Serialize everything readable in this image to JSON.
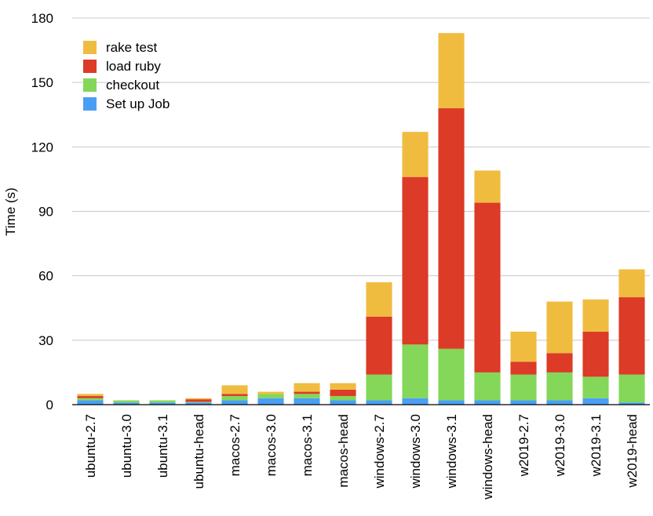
{
  "chart_data": {
    "type": "bar",
    "stacked": true,
    "title": "",
    "xlabel": "",
    "ylabel": "Time (s)",
    "ylim": [
      0,
      180
    ],
    "yticks": [
      0,
      30,
      60,
      90,
      120,
      150,
      180
    ],
    "grid": true,
    "legend_position": "top-left",
    "categories": [
      "ubuntu-2.7",
      "ubuntu-3.0",
      "ubuntu-3.1",
      "ubuntu-head",
      "macos-2.7",
      "macos-3.0",
      "macos-3.1",
      "macos-head",
      "windows-2.7",
      "windows-3.0",
      "windows-3.1",
      "windows-head",
      "w2019-2.7",
      "w2019-3.0",
      "w2019-3.1",
      "w2019-head"
    ],
    "series": [
      {
        "name": "Set up Job",
        "color": "#4a9ff5",
        "values": [
          2,
          1,
          1,
          1,
          2,
          3,
          3,
          2,
          2,
          3,
          2,
          2,
          2,
          2,
          3,
          1
        ]
      },
      {
        "name": "checkout",
        "color": "#84d758",
        "values": [
          1,
          1,
          1,
          0.3,
          2,
          2,
          2,
          2,
          12,
          25,
          24,
          13,
          12,
          13,
          10,
          13
        ]
      },
      {
        "name": "load ruby",
        "color": "#dc3b27",
        "values": [
          1,
          0,
          0,
          1.2,
          1,
          0,
          1,
          3,
          27,
          78,
          112,
          79,
          6,
          9,
          21,
          36
        ]
      },
      {
        "name": "rake test",
        "color": "#f0bc40",
        "values": [
          1,
          0,
          0,
          0.5,
          4,
          1,
          4,
          3,
          16,
          21,
          35,
          15,
          14,
          24,
          15,
          13
        ]
      }
    ]
  }
}
